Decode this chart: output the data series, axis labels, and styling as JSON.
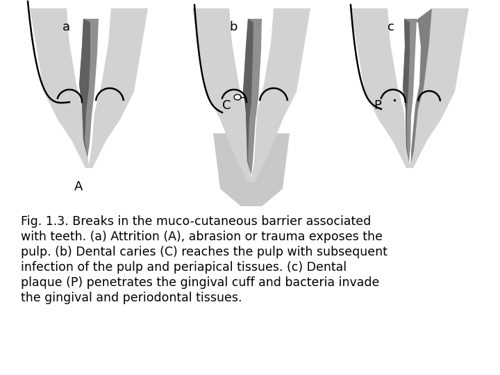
{
  "caption": "Fig. 1.3. Breaks in the muco-cutaneous barrier associated\nwith teeth. (a) Attrition (A), abrasion or trauma exposes the\npulp. (b) Dental caries (C) reaches the pulp with subsequent\ninfection of the pulp and periapical tissues. (c) Dental\nplaque (P) penetrates the gingival cuff and bacteria invade\nthe gingival and periodontal tissues.",
  "bg_color": "#ffffff",
  "gum_light": "#d2d2d2",
  "gum_medium": "#c0c0c0",
  "tooth_white": "#ffffff",
  "pulp_mid": "#909090",
  "pulp_dark": "#606060",
  "label_fontsize": 13,
  "caption_fontsize": 12.5,
  "label_a": "a",
  "label_b": "b",
  "label_c": "c",
  "label_A": "A",
  "label_C": "C",
  "label_P": "P"
}
